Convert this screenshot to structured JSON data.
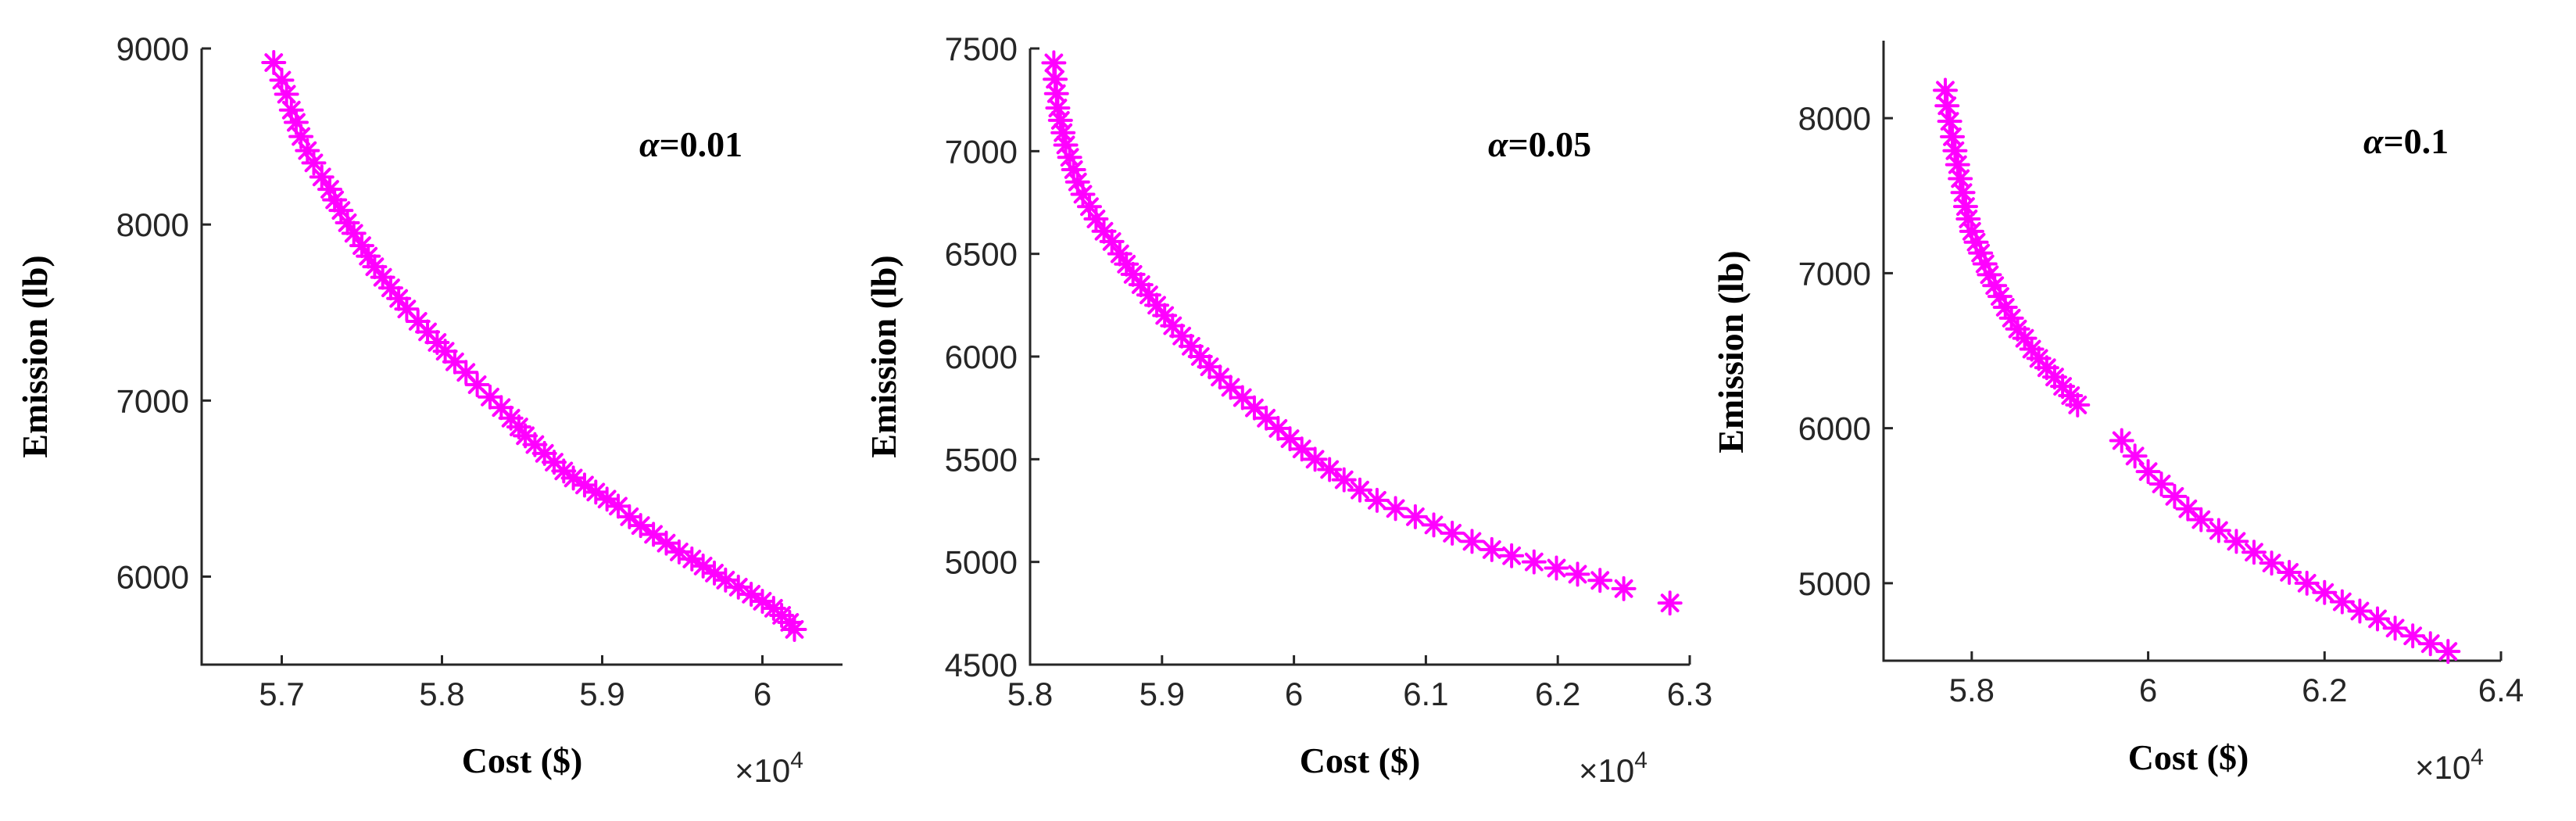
{
  "colors": {
    "marker": "#FF00FF",
    "axis": "#262626"
  },
  "chart_data": [
    {
      "type": "scatter",
      "annotation": {
        "symbol": "α",
        "text": "=0.01"
      },
      "xlabel": "Cost ($)",
      "ylabel": "Emission (lb)",
      "x_multiplier": {
        "base": "×10",
        "exponent": "4"
      },
      "xlim": [
        5.65,
        6.05
      ],
      "ylim": [
        5500,
        9000
      ],
      "xticks": [
        5.7,
        5.8,
        5.9,
        6.0
      ],
      "xtick_labels": [
        "5.7",
        "5.8",
        "5.9",
        "6"
      ],
      "yticks": [
        6000,
        7000,
        8000,
        9000
      ],
      "ytick_labels": [
        "6000",
        "7000",
        "8000",
        "9000"
      ],
      "marker": "asterisk",
      "x": [
        5.695,
        5.7,
        5.703,
        5.706,
        5.709,
        5.712,
        5.716,
        5.72,
        5.725,
        5.73,
        5.733,
        5.737,
        5.741,
        5.745,
        5.75,
        5.754,
        5.758,
        5.763,
        5.768,
        5.773,
        5.778,
        5.785,
        5.791,
        5.797,
        5.802,
        5.808,
        5.815,
        5.822,
        5.83,
        5.837,
        5.843,
        5.848,
        5.852,
        5.858,
        5.864,
        5.87,
        5.876,
        5.882,
        5.889,
        5.896,
        5.903,
        5.91,
        5.917,
        5.924,
        5.932,
        5.94,
        5.948,
        5.956,
        5.963,
        5.97,
        5.977,
        5.985,
        5.993,
        6.0,
        6.007,
        6.012,
        6.017,
        6.02
      ],
      "y": [
        8920,
        8820,
        8740,
        8650,
        8580,
        8500,
        8420,
        8350,
        8270,
        8200,
        8140,
        8080,
        8010,
        7950,
        7880,
        7820,
        7760,
        7700,
        7640,
        7580,
        7520,
        7450,
        7390,
        7330,
        7280,
        7220,
        7160,
        7090,
        7020,
        6960,
        6900,
        6850,
        6800,
        6750,
        6700,
        6650,
        6600,
        6560,
        6520,
        6480,
        6440,
        6400,
        6340,
        6290,
        6240,
        6190,
        6140,
        6100,
        6060,
        6020,
        5980,
        5940,
        5900,
        5860,
        5820,
        5780,
        5740,
        5700
      ]
    },
    {
      "type": "scatter",
      "annotation": {
        "symbol": "α",
        "text": "=0.05"
      },
      "xlabel": "Cost ($)",
      "ylabel": "Emission (lb)",
      "x_multiplier": {
        "base": "×10",
        "exponent": "4"
      },
      "xlim": [
        5.8,
        6.3
      ],
      "ylim": [
        4500,
        7500
      ],
      "xticks": [
        5.8,
        5.9,
        6.0,
        6.1,
        6.2,
        6.3
      ],
      "xtick_labels": [
        "5.8",
        "5.9",
        "6",
        "6.1",
        "6.2",
        "6.3"
      ],
      "yticks": [
        4500,
        5000,
        5500,
        6000,
        6500,
        7000,
        7500
      ],
      "ytick_labels": [
        "4500",
        "5000",
        "5500",
        "6000",
        "6500",
        "7000",
        "7500"
      ],
      "marker": "asterisk",
      "x": [
        5.818,
        5.819,
        5.82,
        5.821,
        5.823,
        5.825,
        5.827,
        5.83,
        5.833,
        5.836,
        5.84,
        5.845,
        5.85,
        5.856,
        5.862,
        5.868,
        5.873,
        5.878,
        5.884,
        5.89,
        5.896,
        5.902,
        5.908,
        5.915,
        5.922,
        5.929,
        5.936,
        5.944,
        5.952,
        5.961,
        5.97,
        5.979,
        5.988,
        5.997,
        6.006,
        6.016,
        6.027,
        6.038,
        6.05,
        6.063,
        6.077,
        6.092,
        6.106,
        6.12,
        6.135,
        6.15,
        6.165,
        6.182,
        6.199,
        6.215,
        6.232,
        6.25,
        6.285
      ],
      "y": [
        7430,
        7350,
        7280,
        7210,
        7150,
        7090,
        7030,
        6970,
        6910,
        6850,
        6790,
        6730,
        6670,
        6610,
        6560,
        6500,
        6450,
        6400,
        6350,
        6300,
        6250,
        6200,
        6150,
        6100,
        6050,
        6000,
        5950,
        5900,
        5850,
        5800,
        5750,
        5700,
        5650,
        5600,
        5550,
        5500,
        5450,
        5400,
        5350,
        5300,
        5260,
        5220,
        5180,
        5140,
        5100,
        5060,
        5030,
        5000,
        4970,
        4940,
        4910,
        4870,
        4800
      ]
    },
    {
      "type": "scatter",
      "annotation": {
        "symbol": "α",
        "text": "=0.1"
      },
      "xlabel": "Cost ($)",
      "ylabel": "Emission (lb)",
      "x_multiplier": {
        "base": "×10",
        "exponent": "4"
      },
      "xlim": [
        5.7,
        6.4
      ],
      "ylim": [
        4500,
        8500
      ],
      "xticks": [
        5.8,
        6.0,
        6.2,
        6.4
      ],
      "xtick_labels": [
        "5.8",
        "6",
        "6.2",
        "6.4"
      ],
      "yticks": [
        5000,
        6000,
        7000,
        8000
      ],
      "ytick_labels": [
        "5000",
        "6000",
        "7000",
        "8000"
      ],
      "marker": "asterisk",
      "x": [
        5.77,
        5.772,
        5.775,
        5.778,
        5.781,
        5.784,
        5.787,
        5.79,
        5.793,
        5.796,
        5.8,
        5.805,
        5.81,
        5.815,
        5.82,
        5.826,
        5.832,
        5.838,
        5.845,
        5.852,
        5.86,
        5.868,
        5.876,
        5.885,
        5.894,
        5.903,
        5.912,
        5.92,
        5.97,
        5.985,
        6.0,
        6.015,
        6.03,
        6.045,
        6.06,
        6.08,
        6.1,
        6.12,
        6.14,
        6.16,
        6.18,
        6.2,
        6.22,
        6.24,
        6.26,
        6.28,
        6.3,
        6.32,
        6.34
      ],
      "y": [
        8180,
        8080,
        7980,
        7880,
        7790,
        7700,
        7610,
        7520,
        7430,
        7350,
        7270,
        7200,
        7130,
        7060,
        6990,
        6920,
        6850,
        6780,
        6710,
        6640,
        6580,
        6510,
        6450,
        6390,
        6330,
        6270,
        6210,
        6150,
        5920,
        5820,
        5720,
        5640,
        5560,
        5480,
        5410,
        5340,
        5270,
        5200,
        5130,
        5070,
        5000,
        4940,
        4880,
        4820,
        4770,
        4710,
        4660,
        4610,
        4560
      ]
    }
  ]
}
